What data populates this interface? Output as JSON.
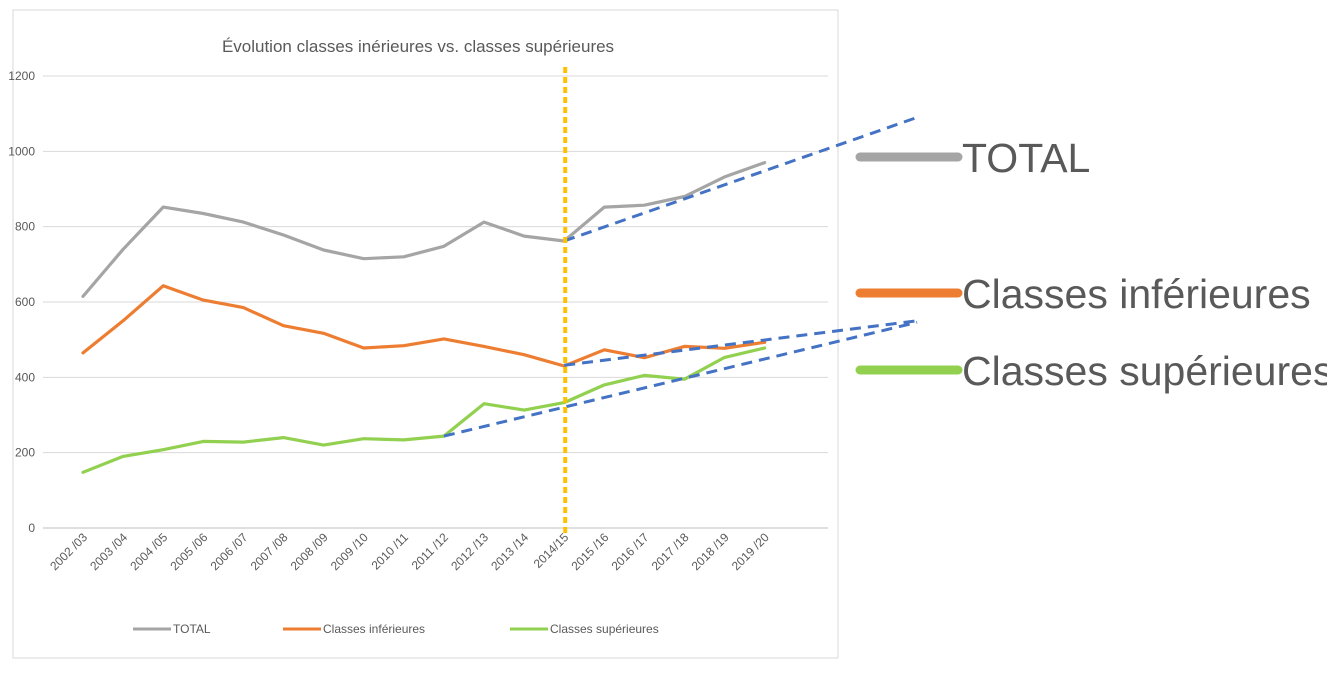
{
  "chart_data": {
    "type": "line",
    "title": "Évolution classes inérieures vs. classes supérieures",
    "xlabel": "",
    "ylabel": "",
    "categories": [
      "2002 /03",
      "2003 /04",
      "2004 /05",
      "2005 /06",
      "2006 /07",
      "2007 /08",
      "2008 /09",
      "2009 /10",
      "2010 /11",
      "2011 /12",
      "2012 /13",
      "2013 /14",
      "2014/15",
      "2015 /16",
      "2016 /17",
      "2017 /18",
      "2018 /19",
      "2019 /20"
    ],
    "ylim": [
      0,
      1200
    ],
    "yticks": [
      0,
      200,
      400,
      600,
      800,
      1000,
      1200
    ],
    "grid": true,
    "legend_position": "bottom",
    "series": [
      {
        "name": "TOTAL",
        "color": "#a5a5a5",
        "values": [
          615,
          740,
          852,
          835,
          812,
          778,
          738,
          715,
          720,
          748,
          812,
          775,
          762,
          852,
          857,
          880,
          932,
          970
        ]
      },
      {
        "name": "Classes inférieures",
        "color": "#ed7d31",
        "values": [
          465,
          550,
          643,
          605,
          585,
          537,
          517,
          478,
          484,
          502,
          482,
          460,
          430,
          473,
          452,
          482,
          477,
          493
        ]
      },
      {
        "name": "Classes supérieures",
        "color": "#92d050",
        "values": [
          148,
          190,
          208,
          230,
          228,
          240,
          220,
          237,
          234,
          244,
          330,
          313,
          333,
          380,
          405,
          395,
          453,
          478
        ]
      }
    ],
    "annotations": {
      "vertical_marker": {
        "category": "2014/15",
        "color": "#ffc000",
        "style": "dotted"
      },
      "trend_lines": [
        {
          "series": "TOTAL",
          "color": "#4472c4",
          "from": [
            12,
            762
          ],
          "to": [
            20.8,
            1090
          ]
        },
        {
          "series": "Classes inférieures",
          "color": "#4472c4",
          "from": [
            12,
            432
          ],
          "to": [
            20.8,
            550
          ]
        },
        {
          "series": "Classes supérieures",
          "color": "#4472c4",
          "from": [
            9,
            244
          ],
          "to": [
            20.8,
            546
          ]
        }
      ]
    },
    "big_legend": [
      {
        "label": "TOTAL",
        "color": "#a5a5a5"
      },
      {
        "label": "Classes inférieures",
        "color": "#ed7d31"
      },
      {
        "label": "Classes supérieures",
        "color": "#92d050"
      }
    ]
  }
}
